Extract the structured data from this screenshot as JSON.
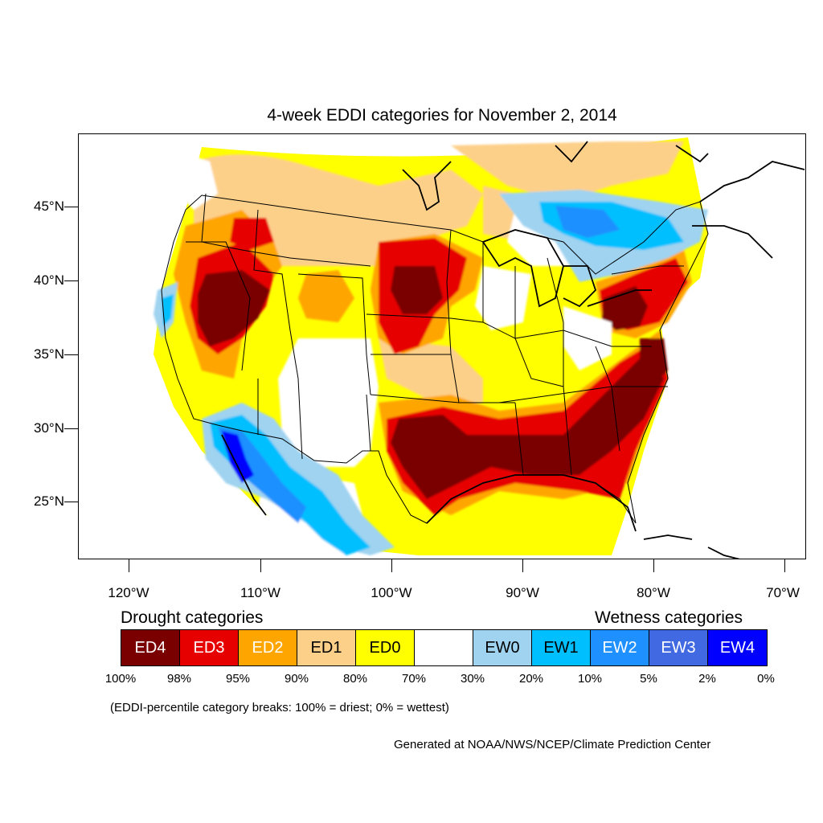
{
  "title": "4-week EDDI categories for November 2, 2014",
  "lat_labels": [
    "45°N",
    "40°N",
    "35°N",
    "30°N",
    "25°N"
  ],
  "lon_labels": [
    "120°W",
    "110°W",
    "100°W",
    "90°W",
    "80°W",
    "70°W"
  ],
  "legend": {
    "drought_title": "Drought categories",
    "wetness_title": "Wetness categories",
    "categories": [
      {
        "label": "ED4",
        "color": "#7a0000",
        "text_color": "#ffffff"
      },
      {
        "label": "ED3",
        "color": "#e60000",
        "text_color": "#ffffff"
      },
      {
        "label": "ED2",
        "color": "#ffa500",
        "text_color": "#ffffff"
      },
      {
        "label": "ED1",
        "color": "#fdd08a",
        "text_color": "#000000"
      },
      {
        "label": "ED0",
        "color": "#ffff00",
        "text_color": "#000000"
      },
      {
        "label": "",
        "color": "#ffffff",
        "text_color": "#000000"
      },
      {
        "label": "EW0",
        "color": "#9fd3f0",
        "text_color": "#000000"
      },
      {
        "label": "EW1",
        "color": "#00bfff",
        "text_color": "#000000"
      },
      {
        "label": "EW2",
        "color": "#1e90ff",
        "text_color": "#ffffff"
      },
      {
        "label": "EW3",
        "color": "#4169e1",
        "text_color": "#ffffff"
      },
      {
        "label": "EW4",
        "color": "#0000ff",
        "text_color": "#ffffff"
      }
    ],
    "percentiles": [
      "100%",
      "98%",
      "95%",
      "90%",
      "80%",
      "70%",
      "30%",
      "20%",
      "10%",
      "5%",
      "2%",
      "0%"
    ]
  },
  "note": "(EDDI-percentile category breaks: 100% = driest; 0% = wettest)",
  "credit": "Generated at NOAA/NWS/NCEP/Climate Prediction Center"
}
